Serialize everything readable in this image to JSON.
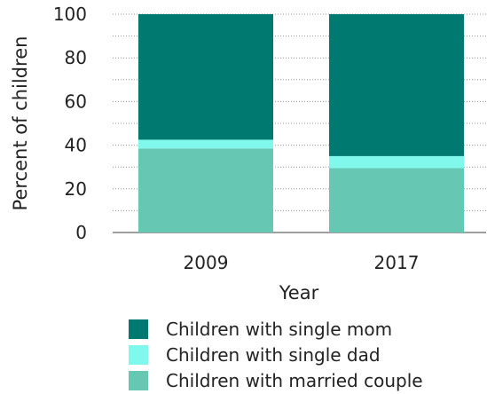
{
  "chart_data": {
    "type": "bar",
    "stacked": true,
    "categories": [
      "2009",
      "2017"
    ],
    "series": [
      {
        "name": "Children with married couple",
        "color": "#66c8b2",
        "values": [
          38.5,
          29.5
        ]
      },
      {
        "name": "Children with single dad",
        "color": "#80f8ec",
        "values": [
          4,
          5.5
        ]
      },
      {
        "name": "Children with single mom",
        "color": "#007a70",
        "values": [
          57.5,
          65
        ]
      }
    ],
    "xlabel": "Year",
    "ylabel": "Percent of children",
    "ylim": [
      0,
      100
    ],
    "yticks": [
      0,
      20,
      40,
      60,
      80,
      100
    ],
    "grid": "horizontal dotted",
    "legend_order": [
      "Children with single mom",
      "Children with single dad",
      "Children with married couple"
    ],
    "legend_placement": "bottom"
  }
}
